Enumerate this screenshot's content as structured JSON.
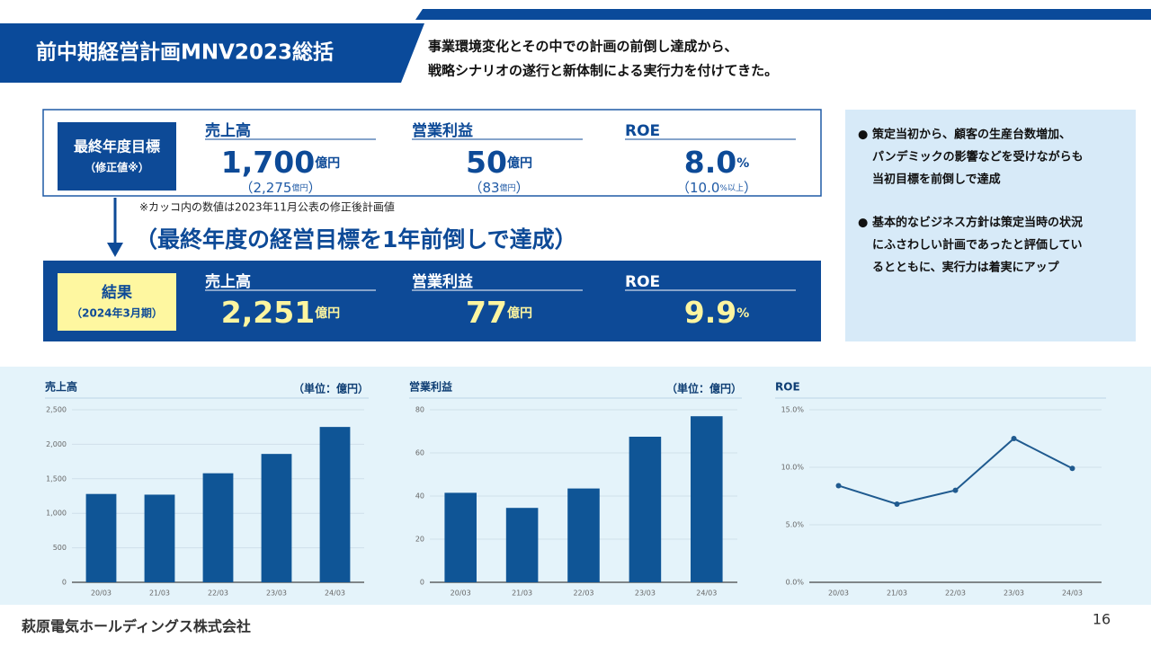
{
  "header": {
    "title": "前中期経営計画MNV2023総括",
    "lead": [
      "事業環境変化とその中での計画の前倒し達成から、",
      "戦略シナリオの遂行と新体制による実行力を付けてきた。"
    ]
  },
  "target": {
    "label": "最終年度目標",
    "sublabel": "（修正値※）",
    "items": [
      {
        "name": "売上高",
        "value": "1,700",
        "unit": "億円",
        "revised": [
          "（2,275",
          "億円",
          "）"
        ]
      },
      {
        "name": "営業利益",
        "value": "50",
        "unit": "億円",
        "revised": [
          "（83",
          "億円",
          "）"
        ]
      },
      {
        "name": "ROE",
        "value": "8.0",
        "unit": "%",
        "revised": [
          "（10.0",
          "%以上",
          "）"
        ]
      }
    ]
  },
  "note": "※カッコ内の数値は2023年11月公表の修正後計画値",
  "headline": "（最終年度の経営目標を1年前倒しで達成）",
  "result": {
    "label": "結果",
    "sublabel": "（2024年3月期）",
    "items": [
      {
        "name": "売上高",
        "value": "2,251",
        "unit": "億円"
      },
      {
        "name": "営業利益",
        "value": "77",
        "unit": "億円"
      },
      {
        "name": "ROE",
        "value": "9.9",
        "unit": "%"
      }
    ]
  },
  "comments": {
    "bullet": "●",
    "items": [
      [
        "策定当初から、顧客の生産台数増加、",
        "パンデミックの影響などを受けながらも",
        "当初目標を前倒しで達成"
      ],
      [
        "基本的なビジネス方針は策定当時の状況",
        "にふさわしい計画であったと評価してい",
        "るとともに、実行力は着実にアップ"
      ]
    ]
  },
  "chart_data": [
    {
      "type": "bar",
      "title": "売上高",
      "subtitle": "（単位：億円）",
      "categories": [
        "20/03",
        "21/03",
        "22/03",
        "23/03",
        "24/03"
      ],
      "values": [
        1280,
        1270,
        1580,
        1860,
        2251
      ],
      "color": "#0f5596",
      "ylim": [
        0,
        2500
      ],
      "yticks": [
        0,
        500,
        {
          "value": 1000,
          "label": "1,000"
        },
        {
          "value": 1500,
          "label": "1,500"
        },
        {
          "value": 2000,
          "label": "2,000"
        },
        {
          "value": 2500,
          "label": "2,500"
        }
      ],
      "grid": true
    },
    {
      "type": "bar",
      "title": "営業利益",
      "subtitle": "（単位：億円）",
      "categories": [
        "20/03",
        "21/03",
        "22/03",
        "23/03",
        "24/03"
      ],
      "values": [
        41.5,
        34.5,
        43.5,
        67.5,
        77
      ],
      "color": "#0f5596",
      "ylim": [
        0,
        80
      ],
      "yticks": [
        0,
        20,
        40,
        60,
        80
      ],
      "grid": true
    },
    {
      "type": "line",
      "title": "ROE",
      "categories": [
        "20/03",
        "21/03",
        "22/03",
        "23/03",
        "24/03"
      ],
      "values": [
        8.4,
        6.8,
        8.0,
        12.5,
        9.9
      ],
      "color": "#1f5a8f",
      "ylim": [
        0,
        15
      ],
      "yticks": [
        {
          "value": 0,
          "label": "0.0%"
        },
        {
          "value": 5,
          "label": "5.0%"
        },
        {
          "value": 10,
          "label": "10.0%"
        },
        {
          "value": 15,
          "label": "15.0%"
        }
      ],
      "grid": true
    }
  ],
  "footer": {
    "company": "萩原電気ホールディングス株式会社",
    "page": "16"
  }
}
